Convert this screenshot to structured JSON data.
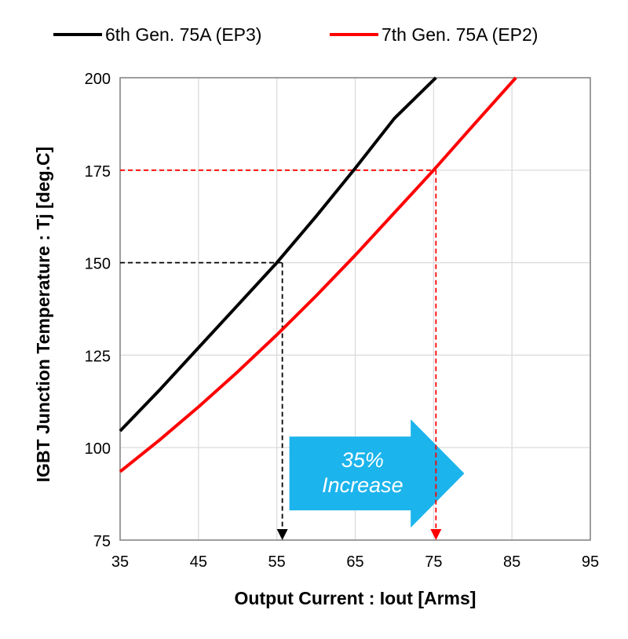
{
  "chart_data": {
    "type": "line",
    "xlabel": "Output Current : Iout [Arms]",
    "ylabel": "IGBT Junction Temperature : Tj [deg.C]",
    "xlim": [
      35,
      95
    ],
    "ylim": [
      75,
      200
    ],
    "xticks": [
      35,
      45,
      55,
      65,
      75,
      85,
      95
    ],
    "yticks": [
      75,
      100,
      125,
      150,
      175,
      200
    ],
    "grid": true,
    "legend_position": "top",
    "series": [
      {
        "name": "6th Gen. 75A (EP3)",
        "color": "#000000",
        "x": [
          35,
          40,
          45,
          50,
          55,
          60,
          65,
          70,
          75.3
        ],
        "y": [
          104.5,
          115.5,
          127,
          138.5,
          150,
          162.5,
          175.5,
          189,
          200
        ]
      },
      {
        "name": "7th Gen. 75A (EP2)",
        "color": "#ff0000",
        "x": [
          35,
          40,
          45,
          50,
          55,
          60,
          65,
          70,
          75,
          80,
          85.5
        ],
        "y": [
          93.5,
          102,
          111,
          120.5,
          130.5,
          141,
          152,
          163.5,
          175,
          187,
          200
        ]
      }
    ],
    "reference_lines": [
      {
        "color": "#000000",
        "x": 55.7,
        "y": 150
      },
      {
        "color": "#ff0000",
        "x": 75.3,
        "y": 175
      }
    ],
    "annotation": {
      "line1": "35%",
      "line2": "Increase",
      "color": "#1cb4ec"
    }
  }
}
